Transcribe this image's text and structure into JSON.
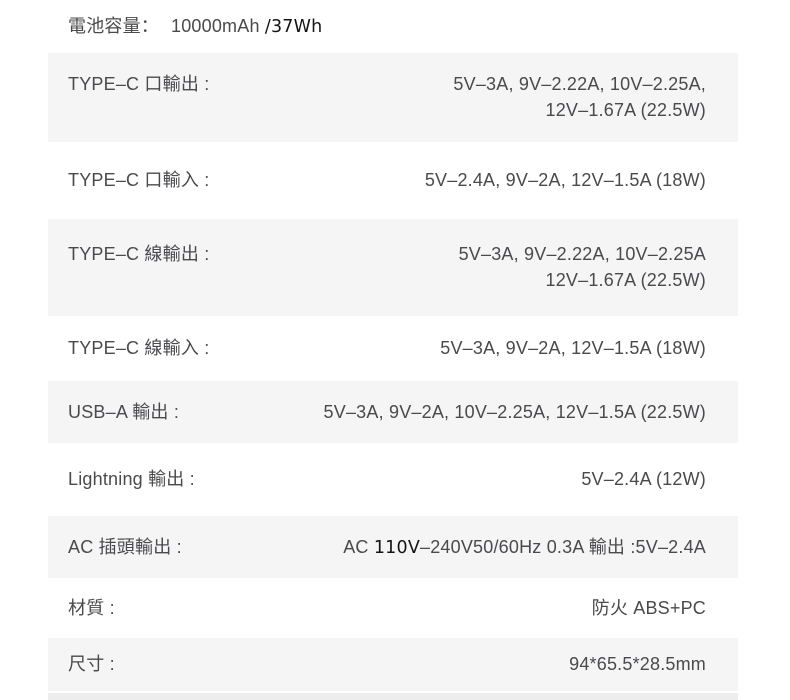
{
  "colors": {
    "page_bg": "#ffffff",
    "row_shaded_bg": "#f5f5f6",
    "bottom_strip_bg": "#ededee",
    "text": "#4a4a4d",
    "highlight_text": "#141414"
  },
  "spec_table": {
    "rows": [
      {
        "key": "battery-capacity",
        "label": "電池容量：",
        "shaded": false,
        "inline": true,
        "value_parts": [
          {
            "text": "10000mAh "
          },
          {
            "text": "/37Wh",
            "highlight": true
          }
        ]
      },
      {
        "key": "type-c-port-output",
        "label": "TYPE–C 口輸出 :",
        "shaded": true,
        "value_lines": [
          "5V–3A, 9V–2.22A, 10V–2.25A,",
          "12V–1.67A (22.5W)"
        ]
      },
      {
        "key": "type-c-port-input",
        "label": "TYPE–C 口輸入 :",
        "shaded": false,
        "value_lines": [
          "5V–2.4A, 9V–2A, 12V–1.5A (18W)"
        ]
      },
      {
        "key": "type-c-cable-output",
        "label": "TYPE–C 線輸出 :",
        "shaded": true,
        "value_lines": [
          "5V–3A, 9V–2.22A, 10V–2.25A",
          "12V–1.67A (22.5W)"
        ]
      },
      {
        "key": "type-c-cable-input",
        "label": "TYPE–C 線輸入 :",
        "shaded": false,
        "value_lines": [
          "5V–3A, 9V–2A, 12V–1.5A (18W)"
        ]
      },
      {
        "key": "usb-a-output",
        "label": "USB–A 輸出 :",
        "shaded": true,
        "value_lines": [
          "5V–3A, 9V–2A, 10V–2.25A, 12V–1.5A (22.5W)"
        ]
      },
      {
        "key": "lightning-output",
        "label": "Lightning 輸出 :",
        "shaded": false,
        "value_lines": [
          "5V–2.4A (12W)"
        ]
      },
      {
        "key": "ac-plug-output",
        "label": "AC 插頭輸出 :",
        "shaded": true,
        "value_parts": [
          {
            "text": "AC "
          },
          {
            "text": "110V",
            "highlight": true
          },
          {
            "text": "–240V50/60Hz 0.3A 輸出 :5V–2.4A"
          }
        ]
      },
      {
        "key": "material",
        "label": "材質 :",
        "shaded": false,
        "value_lines": [
          "防火 ABS+PC"
        ]
      },
      {
        "key": "dimensions",
        "label": "尺寸 :",
        "shaded": true,
        "value_lines": [
          "94*65.5*28.5mm"
        ]
      }
    ]
  }
}
